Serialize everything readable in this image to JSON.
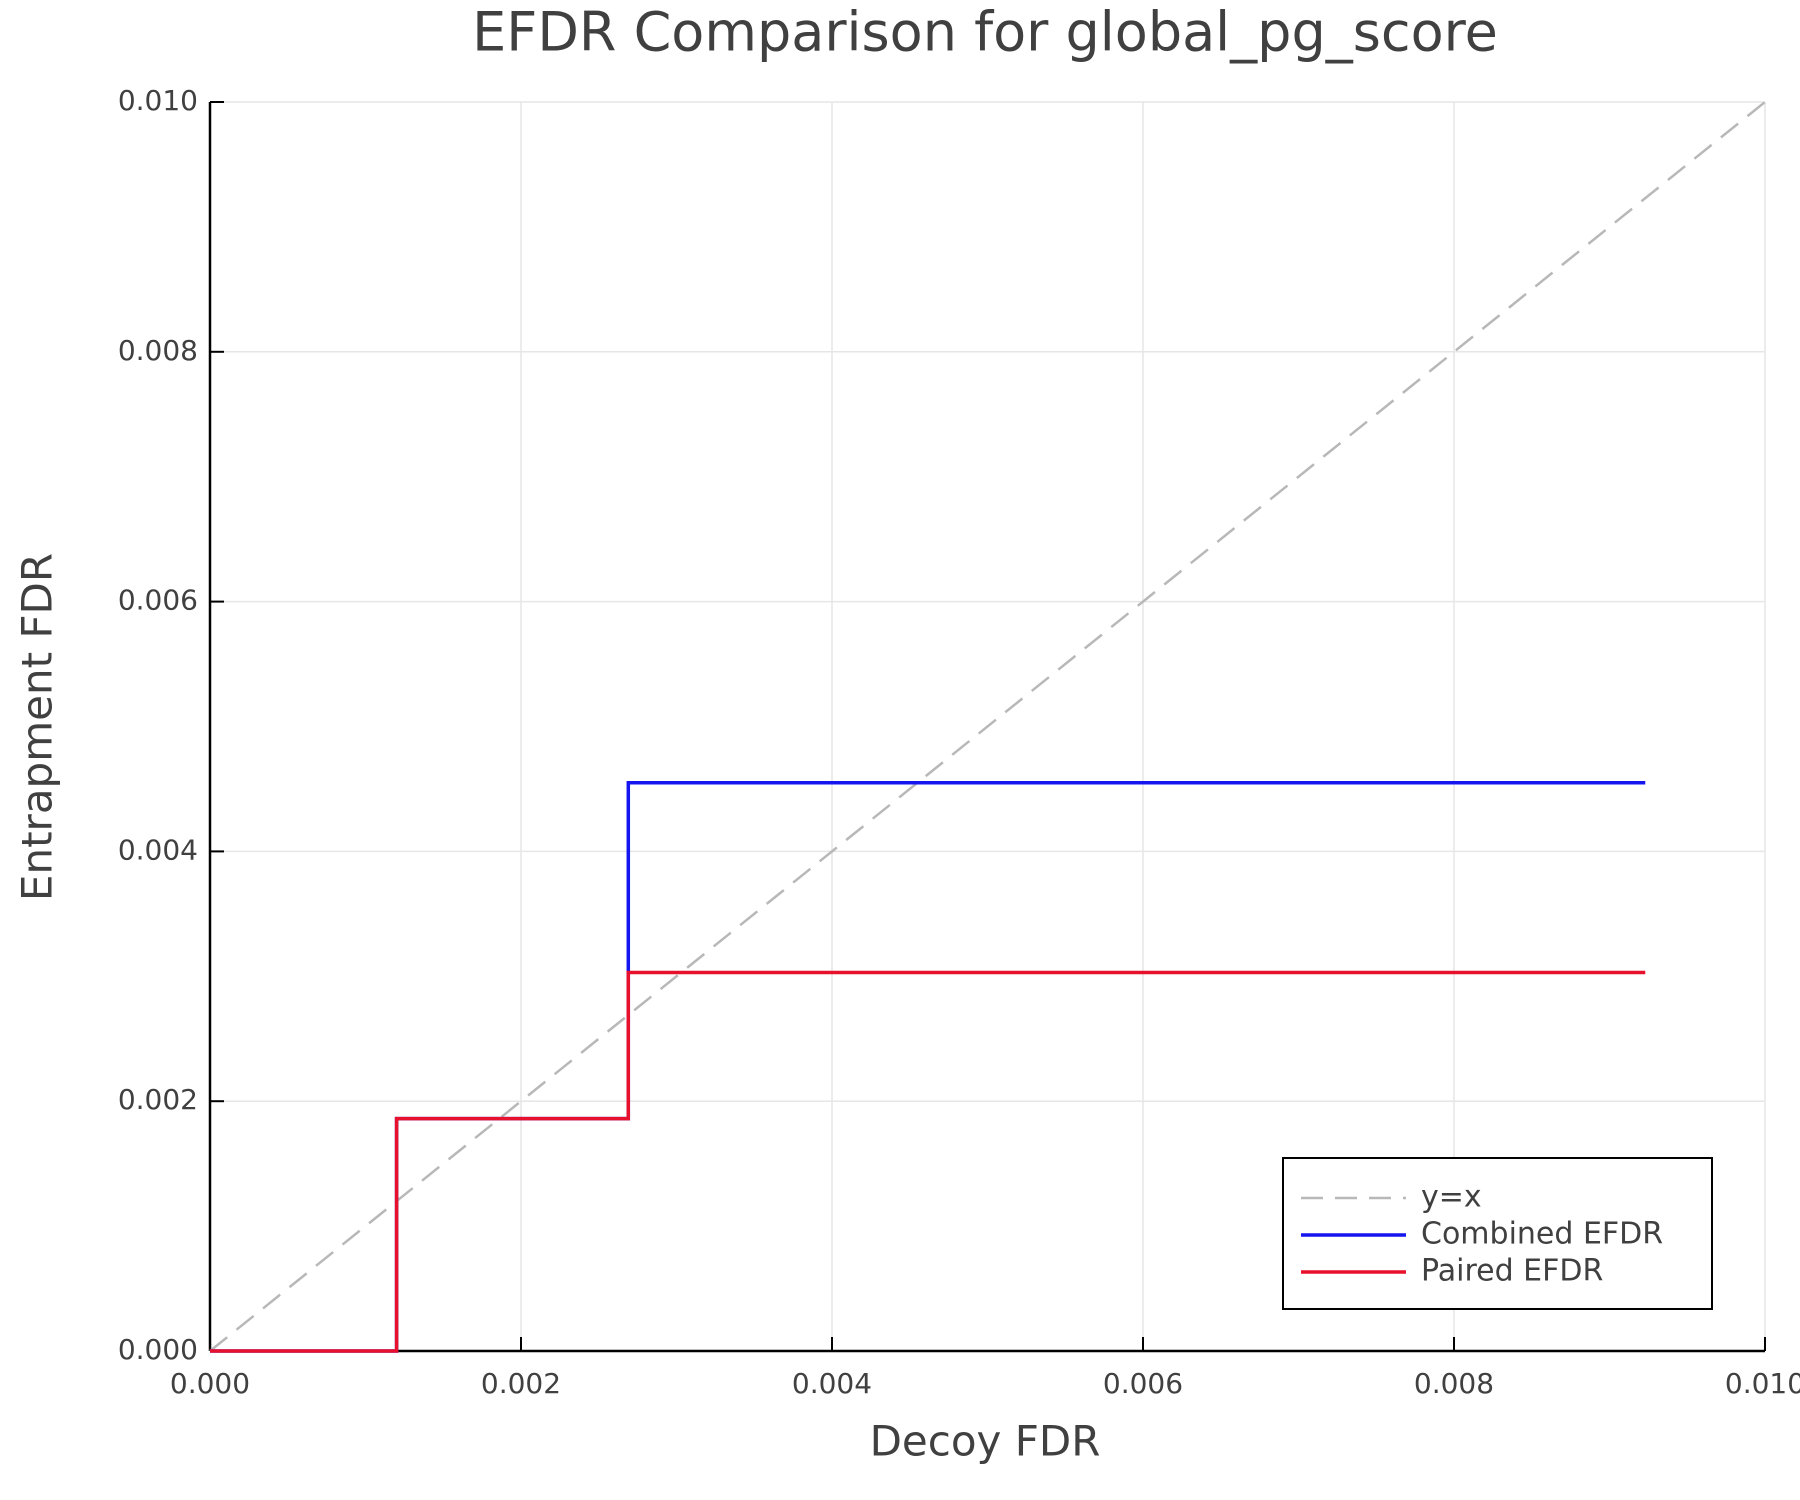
{
  "chart_data": {
    "type": "line",
    "title": "EFDR Comparison for global_pg_score",
    "x_label": "Decoy FDR",
    "y_label": "Entrapment FDR",
    "xlim": [
      0,
      0.01
    ],
    "ylim": [
      0,
      0.01
    ],
    "xticks": [
      {
        "value": 0,
        "label": "0.000"
      },
      {
        "value": 0.002,
        "label": "0.002"
      },
      {
        "value": 0.004,
        "label": "0.004"
      },
      {
        "value": 0.006,
        "label": "0.006"
      },
      {
        "value": 0.008,
        "label": "0.008"
      },
      {
        "value": 0.01,
        "label": "0.010"
      }
    ],
    "yticks": [
      {
        "value": 0,
        "label": "0.000"
      },
      {
        "value": 0.002,
        "label": "0.002"
      },
      {
        "value": 0.004,
        "label": "0.004"
      },
      {
        "value": 0.006,
        "label": "0.006"
      },
      {
        "value": 0.008,
        "label": "0.008"
      },
      {
        "value": 0.01,
        "label": "0.010"
      }
    ],
    "grid": true,
    "legend": "lower right",
    "series": [
      {
        "name": "y=x",
        "color": "#b8b8b8",
        "dashed": true,
        "x": [
          0,
          0.01
        ],
        "values": [
          0,
          0.01
        ]
      },
      {
        "name": "Combined EFDR",
        "color": "#1515f0",
        "x": [
          0,
          0.0012,
          0.0012,
          0.00269,
          0.00269,
          0.00923
        ],
        "values": [
          0,
          0,
          0.00186,
          0.00186,
          0.00455,
          0.00455
        ]
      },
      {
        "name": "Paired EFDR",
        "color": "#e8112d",
        "x": [
          0,
          0.0012,
          0.0012,
          0.00269,
          0.00269,
          0.00923
        ],
        "values": [
          0,
          0,
          0.00186,
          0.00186,
          0.00303,
          0.00303
        ]
      }
    ]
  }
}
